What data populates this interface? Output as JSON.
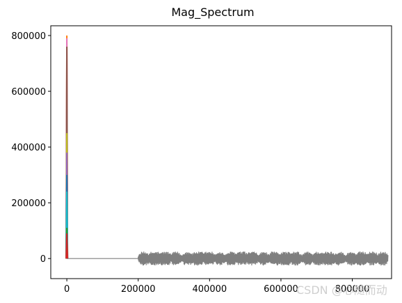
{
  "chart_data": {
    "type": "line",
    "title": "Mag_Spectrum",
    "xlabel": "",
    "ylabel": "",
    "xlim": [
      -45000,
      910000
    ],
    "ylim": [
      -72000,
      835000
    ],
    "x_ticks": [
      {
        "value": 0,
        "label": "0"
      },
      {
        "value": 200000,
        "label": "200000"
      },
      {
        "value": 400000,
        "label": "400000"
      },
      {
        "value": 600000,
        "label": "600000"
      },
      {
        "value": 800000,
        "label": "800000"
      }
    ],
    "y_ticks": [
      {
        "value": 0,
        "label": "0"
      },
      {
        "value": 200000,
        "label": "200000"
      },
      {
        "value": 400000,
        "label": "400000"
      },
      {
        "value": 600000,
        "label": "600000"
      },
      {
        "value": 800000,
        "label": "800000"
      }
    ],
    "grid": false,
    "legend": "none",
    "series": [
      {
        "color": "#7f7f7f",
        "baseline": [
          [
            0,
            0
          ],
          [
            50000,
            0
          ],
          [
            200000,
            0
          ]
        ],
        "noise_start": 200000,
        "noise_end": 900000,
        "noise_amplitude": 25000
      },
      {
        "color": "#1f77b4",
        "spike_x": 0,
        "spike_peak": 300000
      },
      {
        "color": "#ff7f0e",
        "spike_x": 0,
        "spike_peak": 800000
      },
      {
        "color": "#2ca02c",
        "spike_x": 0,
        "spike_peak": 110000
      },
      {
        "color": "#d62728",
        "spike_x": 0,
        "spike_peak": 90000
      },
      {
        "color": "#9467bd",
        "spike_x": 0,
        "spike_peak": 380000
      },
      {
        "color": "#8c564b",
        "spike_x": 0,
        "spike_peak": 760000
      },
      {
        "color": "#e377c2",
        "spike_x": 0,
        "spike_peak": 790000
      },
      {
        "color": "#bcbd22",
        "spike_x": 0,
        "spike_peak": 450000
      },
      {
        "color": "#17becf",
        "spike_x": 0,
        "spike_peak": 240000
      }
    ]
  },
  "watermark": {
    "text": "CSDN @心随而动",
    "color": "#cfcfcf"
  }
}
